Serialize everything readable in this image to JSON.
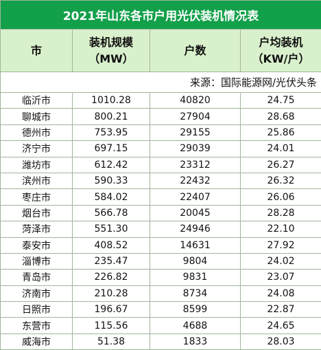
{
  "table": {
    "title": "2021年山东各市户用光伏装机情况表",
    "header": [
      [
        "市"
      ],
      [
        "装机规模",
        "（MW）"
      ],
      [
        "户数"
      ],
      [
        "户均装机",
        "（KW/户）"
      ]
    ],
    "source": "来源：国际能源网/光伏头条",
    "rows": [
      [
        "临沂市",
        "1010.28",
        "40820",
        "24.75"
      ],
      [
        "聊城市",
        "800.21",
        "27904",
        "28.68"
      ],
      [
        "德州市",
        "753.95",
        "29155",
        "25.86"
      ],
      [
        "济宁市",
        "697.15",
        "29039",
        "24.01"
      ],
      [
        "潍坊市",
        "612.42",
        "23312",
        "26.27"
      ],
      [
        "滨州市",
        "590.33",
        "22432",
        "26.32"
      ],
      [
        "枣庄市",
        "584.02",
        "22407",
        "26.06"
      ],
      [
        "烟台市",
        "566.78",
        "20045",
        "28.28"
      ],
      [
        "菏泽市",
        "551.30",
        "24946",
        "22.10"
      ],
      [
        "泰安市",
        "408.52",
        "14631",
        "27.92"
      ],
      [
        "淄博市",
        "235.47",
        "9804",
        "24.02"
      ],
      [
        "青岛市",
        "226.82",
        "9831",
        "23.07"
      ],
      [
        "济南市",
        "210.28",
        "8734",
        "24.08"
      ],
      [
        "日照市",
        "196.67",
        "8599",
        "22.87"
      ],
      [
        "东营市",
        "115.56",
        "4688",
        "24.65"
      ],
      [
        "威海市",
        "51.38",
        "1833",
        "28.03"
      ]
    ]
  }
}
